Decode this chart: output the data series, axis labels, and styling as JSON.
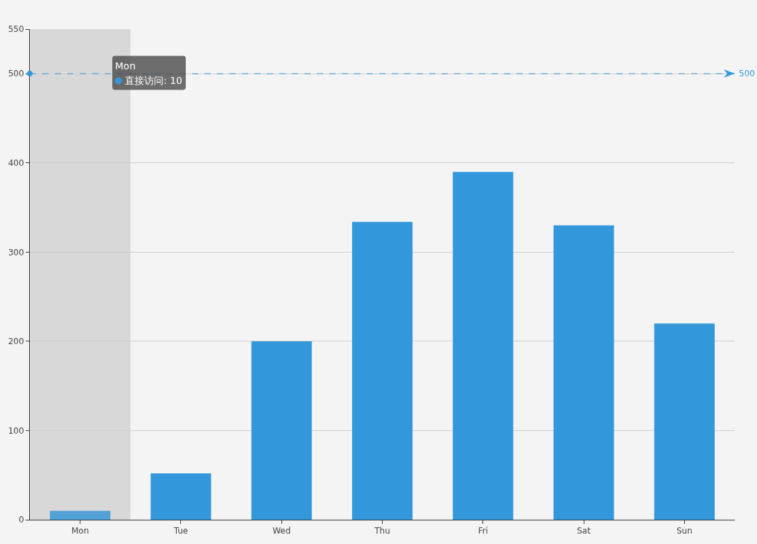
{
  "chart_data": {
    "type": "bar",
    "categories": [
      "Mon",
      "Tue",
      "Wed",
      "Thu",
      "Fri",
      "Sat",
      "Sun"
    ],
    "values": [
      10,
      52,
      200,
      334,
      390,
      330,
      220
    ],
    "color": "#3398db",
    "colors": [
      "#52a1d7",
      "#3398db",
      "#3398db",
      "#3398db",
      "#3398db",
      "#3398db",
      "#3398db"
    ],
    "ylim": [
      0,
      550
    ],
    "yticks": [
      0,
      100,
      200,
      300,
      400,
      500,
      550
    ],
    "grid": "y",
    "bands": [
      {
        "axis": "x",
        "from": "Mon",
        "to": "Mon",
        "color": "#d8d8d8"
      }
    ],
    "ref_lines": [
      {
        "axis": "y",
        "value": 500,
        "label": "500",
        "color": "#3398db",
        "line_style": "dashed"
      }
    ],
    "annotations": [
      "Mon\n直接访问: 10"
    ]
  }
}
